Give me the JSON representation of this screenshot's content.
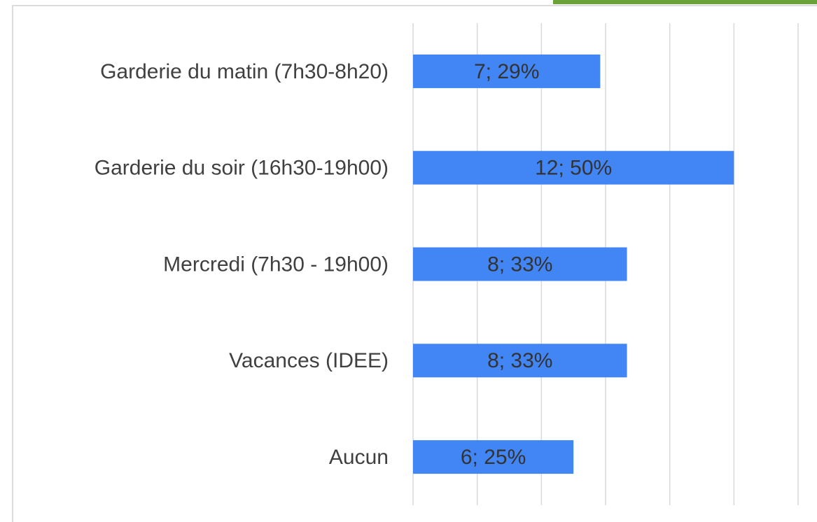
{
  "chart_data": {
    "type": "bar",
    "orientation": "horizontal",
    "categories": [
      "Garderie du matin (7h30-8h20)",
      "Garderie du soir (16h30-19h00)",
      "Mercredi (7h30 - 19h00)",
      "Vacances (IDEE)",
      "Aucun"
    ],
    "values": [
      7,
      12,
      8,
      8,
      6
    ],
    "value_labels": [
      "7; 29%",
      "12; 50%",
      "8; 33%",
      "8; 33%",
      "6; 25%"
    ],
    "color": "#4285f4",
    "xlim": [
      0,
      14.4
    ],
    "xticks": [
      0,
      2.4,
      4.8,
      7.2,
      9.6,
      12,
      14.4
    ],
    "grid": true
  }
}
